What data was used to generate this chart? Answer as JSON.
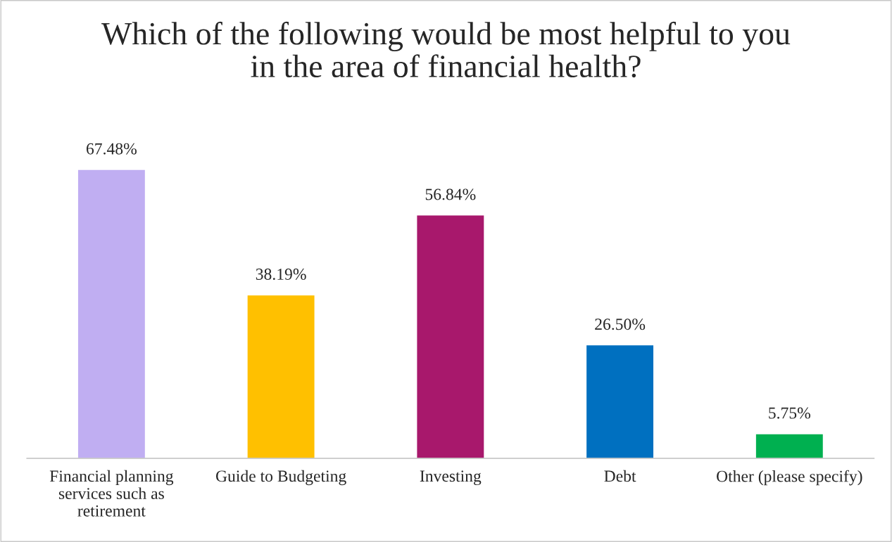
{
  "chart_data": {
    "type": "bar",
    "title": "Which of the following would be most helpful to you in the area of financial health?",
    "categories": [
      "Financial planning services such as retirement",
      "Guide to Budgeting",
      "Investing",
      "Debt",
      "Other (please specify)"
    ],
    "values": [
      67.48,
      38.19,
      56.84,
      26.5,
      5.75
    ],
    "value_labels": [
      "67.48%",
      "38.19%",
      "56.84%",
      "26.50%",
      "5.75%"
    ],
    "colors": [
      "#c0aef2",
      "#ffc000",
      "#a8186c",
      "#0070c0",
      "#00b050"
    ],
    "grid": false,
    "legend": false
  }
}
